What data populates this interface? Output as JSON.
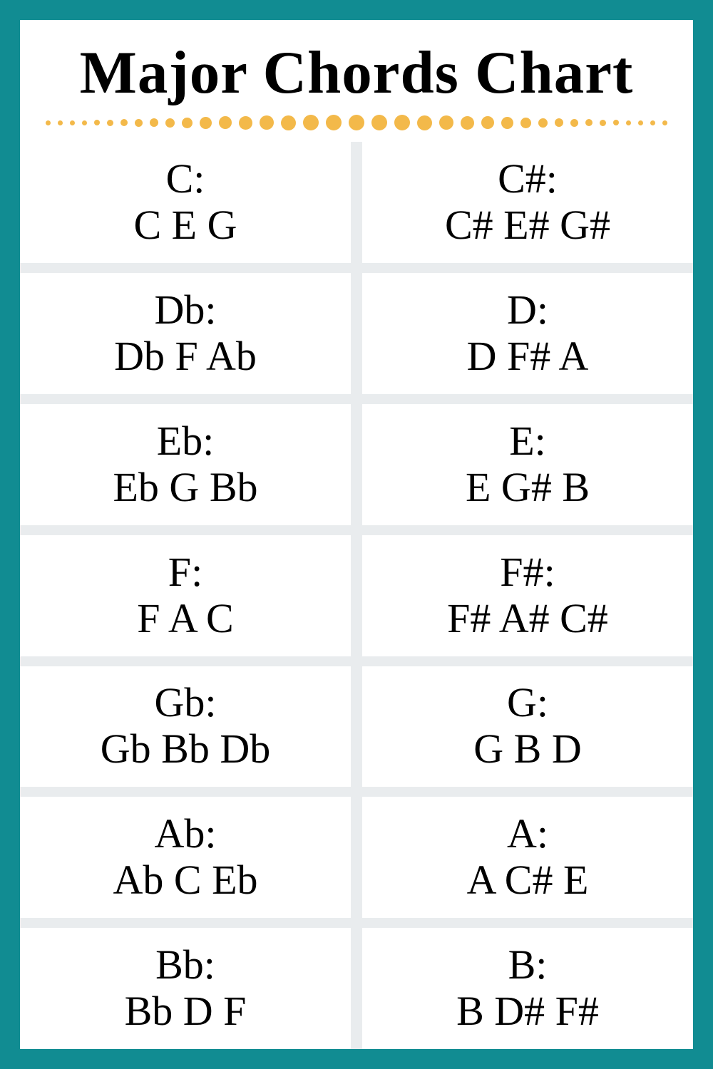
{
  "title": "Major Chords Chart",
  "title_fontsize": 85,
  "frame_color": "#118c92",
  "background_color": "#ffffff",
  "grid_gap_color": "#e9ecee",
  "col_gap": 16,
  "row_gap": 14,
  "cell_fontsize": 58,
  "dot_color": "#f3b94a",
  "dot_sizes": [
    7,
    7,
    7,
    7,
    8,
    9,
    10,
    11,
    12,
    13,
    15,
    17,
    18,
    19,
    20,
    21,
    22,
    22,
    22,
    22,
    22,
    21,
    20,
    19,
    18,
    17,
    15,
    13,
    12,
    11,
    10,
    9,
    8,
    7,
    7,
    7,
    7
  ],
  "rows": [
    [
      {
        "name": "C",
        "notes": "C E G"
      },
      {
        "name": "C#",
        "notes": "C# E# G#"
      }
    ],
    [
      {
        "name": "Db",
        "notes": "Db F Ab"
      },
      {
        "name": "D",
        "notes": "D F# A"
      }
    ],
    [
      {
        "name": "Eb",
        "notes": "Eb G Bb"
      },
      {
        "name": "E",
        "notes": "E G# B"
      }
    ],
    [
      {
        "name": "F",
        "notes": "F A C"
      },
      {
        "name": "F#",
        "notes": "F# A# C#"
      }
    ],
    [
      {
        "name": "Gb",
        "notes": "Gb Bb Db"
      },
      {
        "name": "G",
        "notes": "G B D"
      }
    ],
    [
      {
        "name": "Ab",
        "notes": "Ab C Eb"
      },
      {
        "name": "A",
        "notes": "A C# E"
      }
    ],
    [
      {
        "name": "Bb",
        "notes": "Bb D F"
      },
      {
        "name": "B",
        "notes": "B D# F#"
      }
    ]
  ]
}
